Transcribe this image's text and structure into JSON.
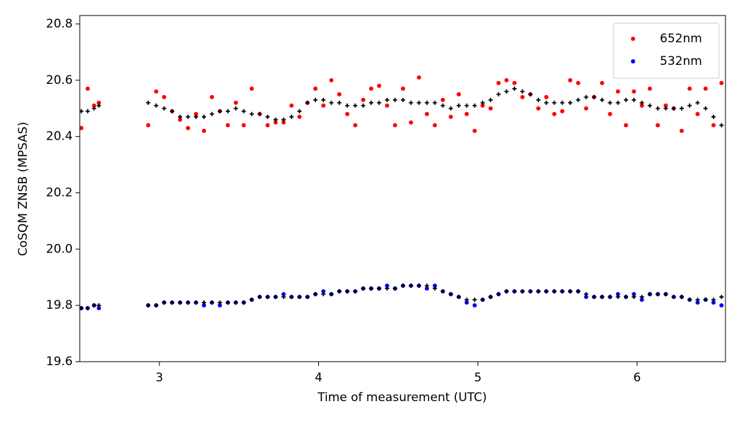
{
  "chart_data": {
    "type": "scatter",
    "xlabel": "Time of measurement (UTC)",
    "ylabel": "CoSQM ZNSB (MPSAS)",
    "xlim": [
      2.5,
      6.555
    ],
    "xticks": [
      3,
      4,
      5,
      6
    ],
    "ylim": [
      19.6,
      20.83
    ],
    "yticks": [
      19.6,
      19.8,
      {
        "value": 20,
        "label": "20.0"
      },
      20.2,
      20.4,
      20.6,
      20.8
    ],
    "legend": "upper right",
    "x": [
      2.51,
      2.55,
      2.59,
      2.62,
      2.93,
      2.98,
      3.03,
      3.08,
      3.13,
      3.18,
      3.23,
      3.28,
      3.33,
      3.38,
      3.43,
      3.48,
      3.53,
      3.58,
      3.63,
      3.68,
      3.73,
      3.78,
      3.83,
      3.88,
      3.93,
      3.98,
      4.03,
      4.08,
      4.13,
      4.18,
      4.23,
      4.28,
      4.33,
      4.38,
      4.43,
      4.48,
      4.53,
      4.58,
      4.63,
      4.68,
      4.73,
      4.78,
      4.83,
      4.88,
      4.93,
      4.98,
      5.03,
      5.08,
      5.13,
      5.18,
      5.23,
      5.28,
      5.33,
      5.38,
      5.43,
      5.48,
      5.53,
      5.58,
      5.63,
      5.68,
      5.73,
      5.78,
      5.83,
      5.88,
      5.93,
      5.98,
      6.03,
      6.08,
      6.13,
      6.18,
      6.23,
      6.28,
      6.33,
      6.38,
      6.43,
      6.48,
      6.53
    ],
    "series": [
      {
        "name": "652nm",
        "color": "#ff0000",
        "marker": "circle",
        "values": [
          20.43,
          20.57,
          20.51,
          20.52,
          20.44,
          20.56,
          20.54,
          20.49,
          20.46,
          20.43,
          20.48,
          20.42,
          20.54,
          20.49,
          20.44,
          20.52,
          20.44,
          20.57,
          20.48,
          20.44,
          20.45,
          20.45,
          20.51,
          20.47,
          20.52,
          20.57,
          20.51,
          20.6,
          20.55,
          20.48,
          20.44,
          20.53,
          20.57,
          20.58,
          20.51,
          20.44,
          20.57,
          20.45,
          20.61,
          20.48,
          20.44,
          20.53,
          20.47,
          20.55,
          20.48,
          20.42,
          20.51,
          20.5,
          20.59,
          20.6,
          20.59,
          20.54,
          20.55,
          20.5,
          20.54,
          20.48,
          20.49,
          20.6,
          20.59,
          20.5,
          20.54,
          20.59,
          20.48,
          20.56,
          20.44,
          20.56,
          20.51,
          20.57,
          20.44,
          20.51,
          20.5,
          20.42,
          20.57,
          20.48,
          20.57,
          20.44,
          20.59
        ]
      },
      {
        "name": "532nm",
        "color": "#0000ff",
        "marker": "circle",
        "values": [
          19.79,
          19.79,
          19.8,
          19.79,
          19.8,
          19.8,
          19.81,
          19.81,
          19.81,
          19.81,
          19.81,
          19.8,
          19.81,
          19.8,
          19.81,
          19.81,
          19.81,
          19.82,
          19.83,
          19.83,
          19.83,
          19.84,
          19.83,
          19.83,
          19.83,
          19.84,
          19.85,
          19.84,
          19.85,
          19.85,
          19.85,
          19.86,
          19.86,
          19.86,
          19.87,
          19.86,
          19.87,
          19.87,
          19.87,
          19.86,
          19.87,
          19.85,
          19.84,
          19.83,
          19.81,
          19.8,
          19.82,
          19.83,
          19.84,
          19.85,
          19.85,
          19.85,
          19.85,
          19.85,
          19.85,
          19.85,
          19.85,
          19.85,
          19.85,
          19.83,
          19.83,
          19.83,
          19.83,
          19.84,
          19.83,
          19.84,
          19.82,
          19.84,
          19.84,
          19.84,
          19.83,
          19.83,
          19.82,
          19.81,
          19.82,
          19.81,
          19.8
        ]
      },
      {
        "color": "#000000",
        "marker": "plus",
        "values": [
          20.49,
          20.49,
          20.5,
          20.51,
          20.52,
          20.51,
          20.5,
          20.49,
          20.47,
          20.47,
          20.47,
          20.47,
          20.48,
          20.49,
          20.49,
          20.5,
          20.49,
          20.48,
          20.48,
          20.47,
          20.46,
          20.46,
          20.47,
          20.49,
          20.52,
          20.53,
          20.53,
          20.52,
          20.52,
          20.51,
          20.51,
          20.51,
          20.52,
          20.52,
          20.53,
          20.53,
          20.53,
          20.52,
          20.52,
          20.52,
          20.52,
          20.51,
          20.5,
          20.51,
          20.51,
          20.51,
          20.52,
          20.53,
          20.55,
          20.56,
          20.57,
          20.56,
          20.55,
          20.53,
          20.52,
          20.52,
          20.52,
          20.52,
          20.53,
          20.54,
          20.54,
          20.53,
          20.52,
          20.52,
          20.53,
          20.53,
          20.52,
          20.51,
          20.5,
          20.5,
          20.5,
          20.5,
          20.51,
          20.52,
          20.5,
          20.47,
          20.44
        ]
      },
      {
        "color": "#000000",
        "marker": "plus",
        "values": [
          19.79,
          19.79,
          19.8,
          19.8,
          19.8,
          19.8,
          19.81,
          19.81,
          19.81,
          19.81,
          19.81,
          19.81,
          19.81,
          19.81,
          19.81,
          19.81,
          19.81,
          19.82,
          19.83,
          19.83,
          19.83,
          19.83,
          19.83,
          19.83,
          19.83,
          19.84,
          19.84,
          19.84,
          19.85,
          19.85,
          19.85,
          19.86,
          19.86,
          19.86,
          19.86,
          19.86,
          19.87,
          19.87,
          19.87,
          19.87,
          19.86,
          19.85,
          19.84,
          19.83,
          19.82,
          19.82,
          19.82,
          19.83,
          19.84,
          19.85,
          19.85,
          19.85,
          19.85,
          19.85,
          19.85,
          19.85,
          19.85,
          19.85,
          19.85,
          19.84,
          19.83,
          19.83,
          19.83,
          19.83,
          19.83,
          19.83,
          19.83,
          19.84,
          19.84,
          19.84,
          19.83,
          19.83,
          19.82,
          19.82,
          19.82,
          19.82,
          19.83
        ]
      }
    ]
  }
}
